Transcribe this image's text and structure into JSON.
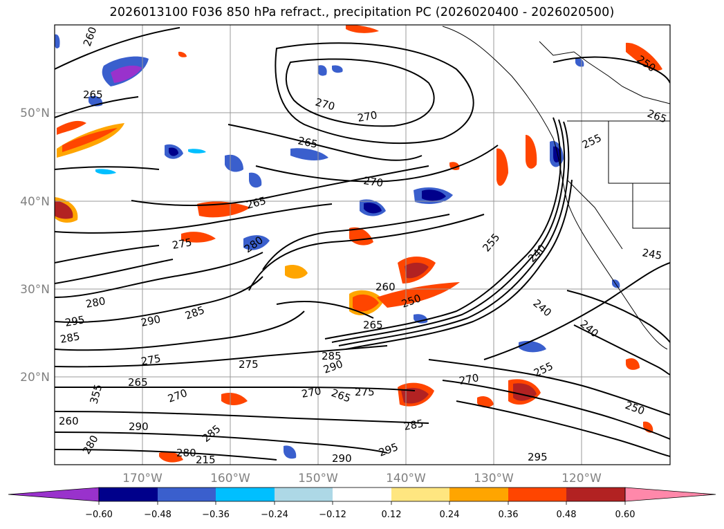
{
  "title": "2026013100 F036 850 hPa refract., precipitation PC (2026020400 - 2026020500)",
  "lat_labels": [
    "50°N",
    "40°N",
    "30°N",
    "20°N"
  ],
  "lon_labels": [
    "170°W",
    "160°W",
    "150°W",
    "140°W",
    "130°W",
    "120°W"
  ],
  "contour_labels": [
    "260",
    "265",
    "270",
    "270",
    "265",
    "270",
    "265",
    "275",
    "280",
    "255",
    "260",
    "250",
    "240",
    "240",
    "240",
    "245",
    "255",
    "250",
    "265",
    "280",
    "295",
    "285",
    "290",
    "285",
    "275",
    "265",
    "270",
    "275",
    "285",
    "290",
    "270",
    "265",
    "275",
    "285",
    "290",
    "295",
    "295",
    "270",
    "255",
    "250",
    "355",
    "260",
    "280",
    "290",
    "285",
    "280",
    "215",
    "265"
  ],
  "colorbar": {
    "ticks": [
      "−0.60",
      "−0.48",
      "−0.36",
      "−0.24",
      "−0.12",
      "0.12",
      "0.24",
      "0.36",
      "0.48",
      "0.60"
    ],
    "colors": [
      "#9932cc",
      "#00008b",
      "#3a5fcd",
      "#00bfff",
      "#add8e6",
      "#ffffff",
      "#ffe680",
      "#ffa500",
      "#ff4500",
      "#b22222",
      "#ff88aa"
    ]
  }
}
